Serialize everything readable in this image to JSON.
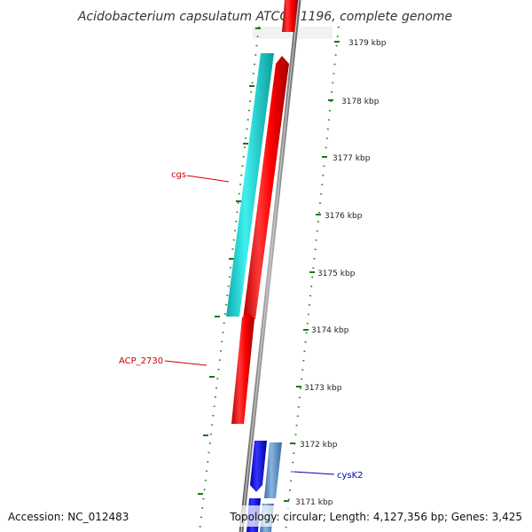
{
  "title": "Acidobacterium capsulatum ATCC 51196, complete genome",
  "accession": "Accession: NC_012483",
  "topology": "Topology: circular; Length: 4,127,356 bp; Genes: 3,425",
  "ticks": [
    {
      "label": "3179 kbp"
    },
    {
      "label": "3178 kbp"
    },
    {
      "label": "3177 kbp"
    },
    {
      "label": "3176 kbp"
    },
    {
      "label": "3175 kbp"
    },
    {
      "label": "3174 kbp"
    },
    {
      "label": "3173 kbp"
    },
    {
      "label": "3172 kbp"
    },
    {
      "label": "3171 kbp"
    }
  ],
  "gene_labels": [
    {
      "name": "cgs",
      "color": "#cc0000"
    },
    {
      "name": "ACP_2730",
      "color": "#cc0000"
    },
    {
      "name": "cysK2",
      "color": "#0000aa"
    }
  ],
  "colors": {
    "red_gene": "#ff1a1a",
    "cyan_gene": "#1ccfcf",
    "blue_gene": "#1616e6",
    "steel_gene": "#5b8fc9",
    "backbone": "#8a8a8a",
    "tick_mark": "#1a7a1a"
  }
}
